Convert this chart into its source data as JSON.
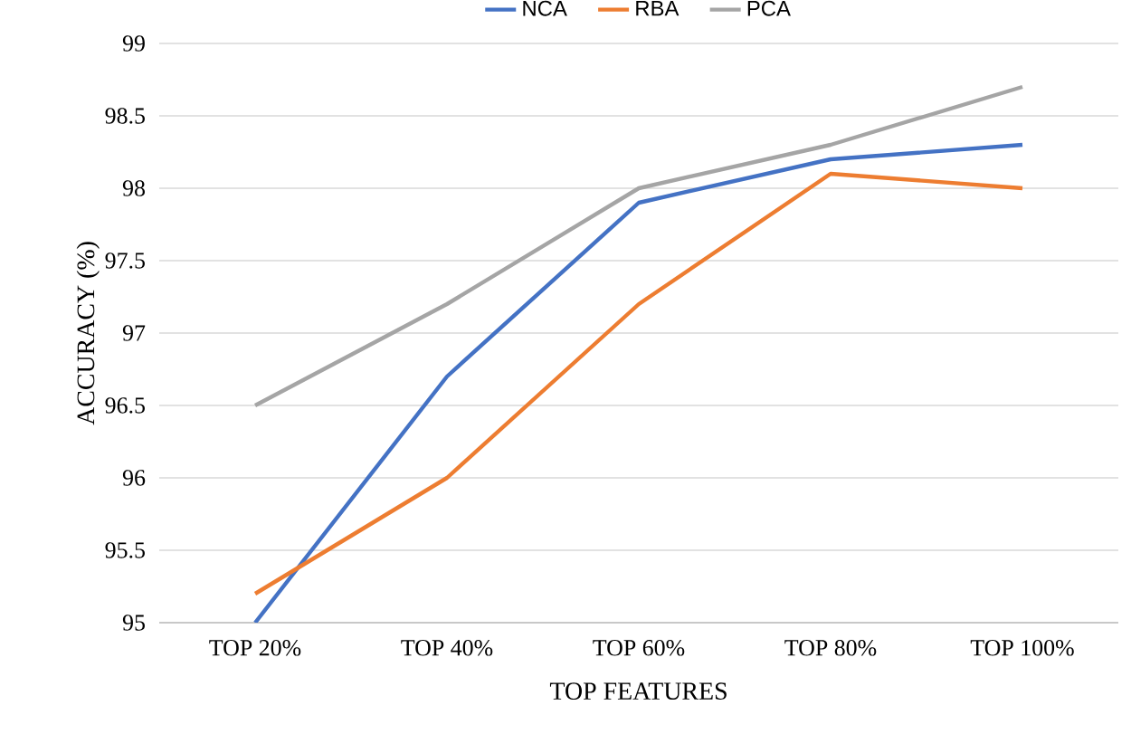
{
  "chart_data": {
    "type": "line",
    "xlabel": "TOP FEATURES",
    "ylabel": "ACCURACY (%)",
    "categories": [
      "TOP 20%",
      "TOP 40%",
      "TOP 60%",
      "TOP 80%",
      "TOP 100%"
    ],
    "series": [
      {
        "name": "NCA",
        "color": "#4472c4",
        "values": [
          95,
          96.7,
          97.9,
          98.2,
          98.3
        ]
      },
      {
        "name": "RBA",
        "color": "#ed7d31",
        "values": [
          95.2,
          96,
          97.2,
          98.1,
          98
        ]
      },
      {
        "name": "PCA",
        "color": "#a5a5a5",
        "values": [
          96.5,
          97.2,
          98,
          98.3,
          98.7
        ]
      }
    ],
    "ylim": [
      95,
      99
    ],
    "yticks": [
      95,
      95.5,
      96,
      96.5,
      97,
      97.5,
      98,
      98.5,
      99
    ],
    "grid": "y",
    "legend": "top"
  }
}
